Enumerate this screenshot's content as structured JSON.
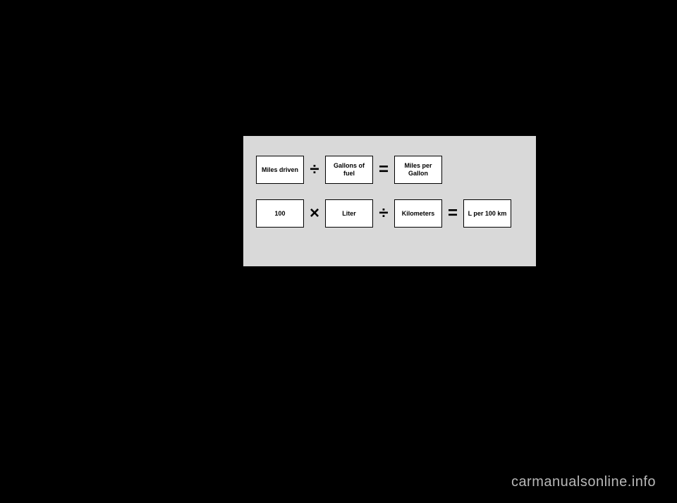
{
  "diagram": {
    "background_color": "#d9d9d9",
    "box_background": "#ffffff",
    "box_border_color": "#000000",
    "text_color": "#000000",
    "formula1": {
      "box1": "Miles driven",
      "operator1": "÷",
      "box2": "Gallons of fuel",
      "operator2": "=",
      "box3": "Miles per Gallon"
    },
    "formula2": {
      "box1": "100",
      "operator1": "×",
      "box2": "Liter",
      "operator2": "÷",
      "box3": "Kilometers",
      "operator3": "=",
      "box4": "L per 100 km"
    }
  },
  "watermark": {
    "text": "carmanualsonline.info",
    "color": "#b8b8b8"
  },
  "page_background": "#000000"
}
